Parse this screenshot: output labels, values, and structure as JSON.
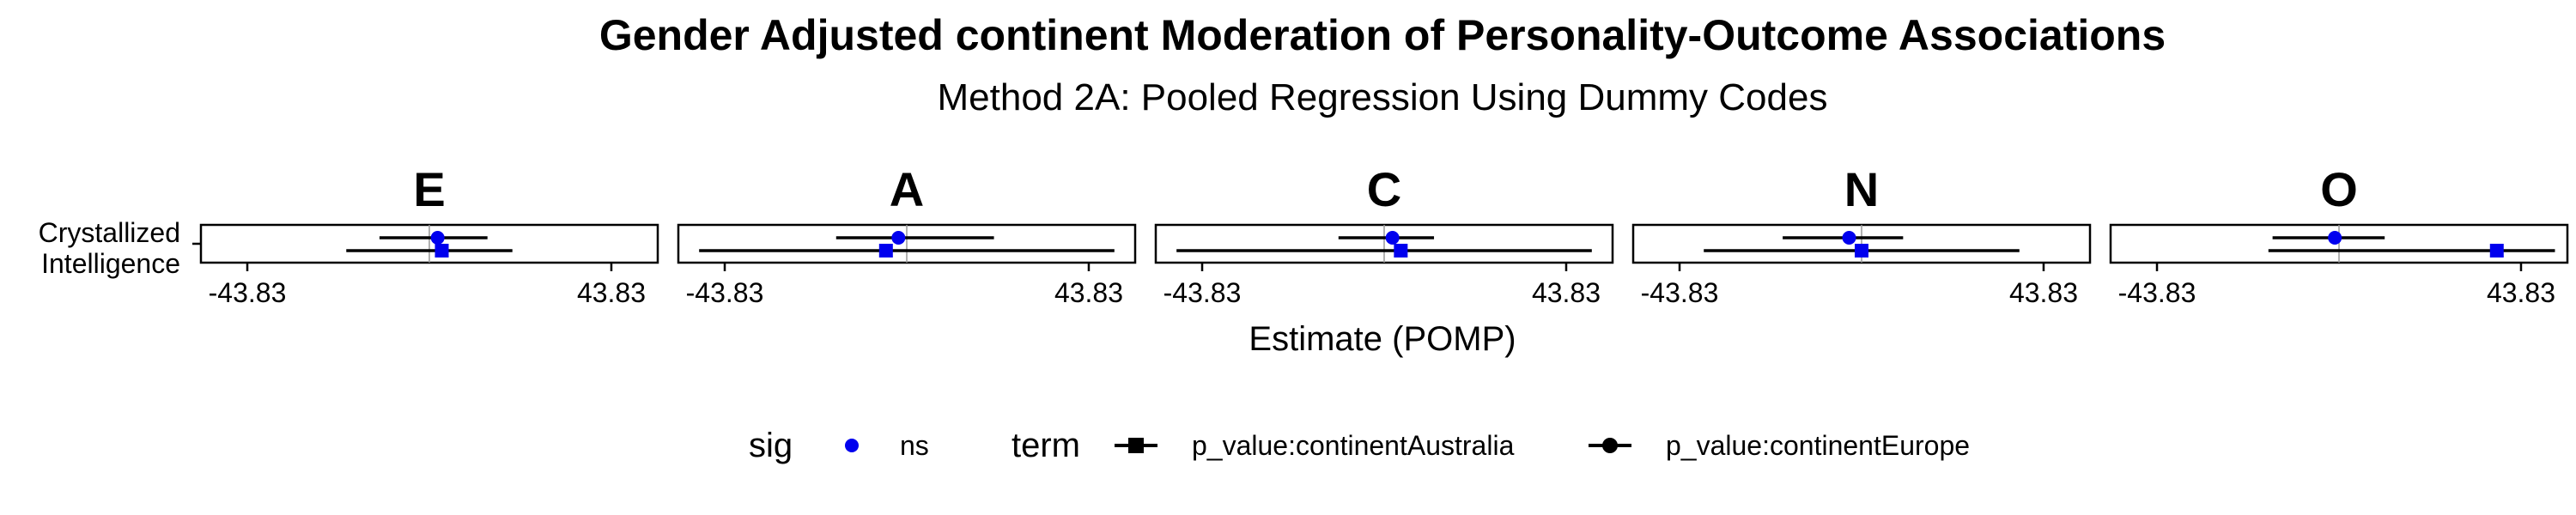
{
  "chart_data": {
    "type": "forest",
    "title": "Gender Adjusted continent Moderation of Personality-Outcome Associations",
    "subtitle": "Method 2A: Pooled Regression Using Dummy Codes",
    "xlabel": "Estimate (POMP)",
    "ylabel": "",
    "y_categories": [
      "Crystallized\nIntelligence"
    ],
    "x_ticks": [
      -43.83,
      43.83
    ],
    "x_tick_labels": [
      "-43.83",
      "43.83"
    ],
    "xlim": [
      -55,
      55
    ],
    "reference_line": 0,
    "grid": false,
    "legend_position": "bottom",
    "legend": {
      "sig_title": "sig",
      "sig_items": [
        {
          "label": "ns",
          "color": "#0000ee"
        }
      ],
      "term_title": "term",
      "term_items": [
        {
          "label": "p_value:continentAustralia",
          "shape": "square"
        },
        {
          "label": "p_value:continentEurope",
          "shape": "circle"
        }
      ]
    },
    "facets": [
      {
        "label": "E",
        "points": [
          {
            "term": "p_value:continentEurope",
            "estimate": 2,
            "lo": -12,
            "hi": 14,
            "sig": "ns"
          },
          {
            "term": "p_value:continentAustralia",
            "estimate": 3,
            "lo": -20,
            "hi": 20,
            "sig": "ns"
          }
        ]
      },
      {
        "label": "A",
        "points": [
          {
            "term": "p_value:continentEurope",
            "estimate": -2,
            "lo": -17,
            "hi": 21,
            "sig": "ns"
          },
          {
            "term": "p_value:continentAustralia",
            "estimate": -5,
            "lo": -50,
            "hi": 50,
            "sig": "ns"
          }
        ]
      },
      {
        "label": "C",
        "points": [
          {
            "term": "p_value:continentEurope",
            "estimate": 2,
            "lo": -11,
            "hi": 12,
            "sig": "ns"
          },
          {
            "term": "p_value:continentAustralia",
            "estimate": 4,
            "lo": -50,
            "hi": 50,
            "sig": "ns"
          }
        ]
      },
      {
        "label": "N",
        "points": [
          {
            "term": "p_value:continentEurope",
            "estimate": -3,
            "lo": -19,
            "hi": 10,
            "sig": "ns"
          },
          {
            "term": "p_value:continentAustralia",
            "estimate": 0,
            "lo": -38,
            "hi": 38,
            "sig": "ns"
          }
        ]
      },
      {
        "label": "O",
        "points": [
          {
            "term": "p_value:continentEurope",
            "estimate": -1,
            "lo": -16,
            "hi": 11,
            "sig": "ns"
          },
          {
            "term": "p_value:continentAustralia",
            "estimate": 38,
            "lo": -17,
            "hi": 52,
            "sig": "ns"
          }
        ]
      }
    ]
  }
}
